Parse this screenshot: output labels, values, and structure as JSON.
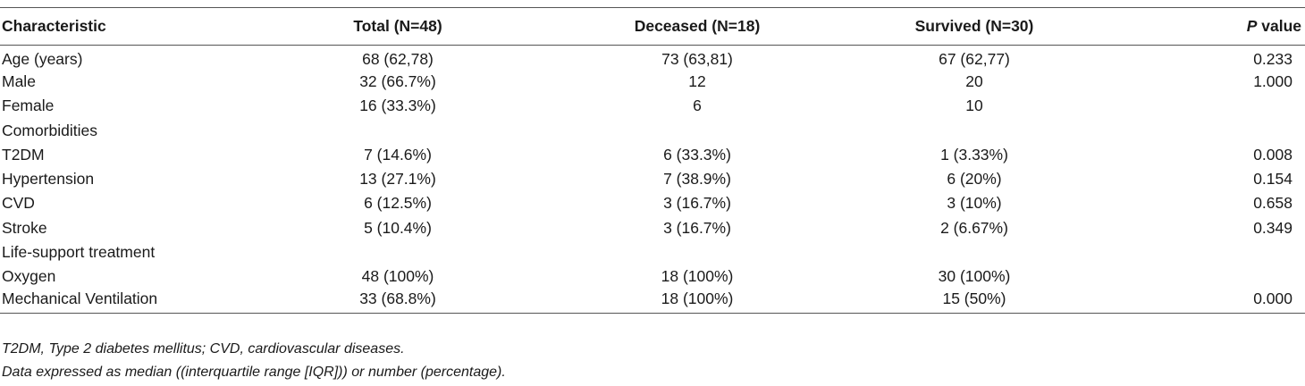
{
  "table": {
    "headers": {
      "characteristic": "Characteristic",
      "total": "Total (N=48)",
      "deceased": "Deceased (N=18)",
      "survived": "Survived (N=30)",
      "p_letter": "P",
      "p_rest": " value"
    },
    "rows": [
      {
        "label": "Age (years)",
        "total": "68 (62,78)",
        "deceased": "73 (63,81)",
        "survived": "67 (62,77)",
        "p": "0.233"
      },
      {
        "label": "Male",
        "total": "32 (66.7%)",
        "deceased": "12",
        "survived": "20",
        "p": "1.000"
      },
      {
        "label": "Female",
        "total": "16 (33.3%)",
        "deceased": "6",
        "survived": "10",
        "p": ""
      },
      {
        "label": "Comorbidities",
        "total": "",
        "deceased": "",
        "survived": "",
        "p": ""
      },
      {
        "label": "T2DM",
        "total": "7 (14.6%)",
        "deceased": "6 (33.3%)",
        "survived": "1 (3.33%)",
        "p": "0.008"
      },
      {
        "label": "Hypertension",
        "total": "13 (27.1%)",
        "deceased": "7 (38.9%)",
        "survived": "6 (20%)",
        "p": "0.154"
      },
      {
        "label": "CVD",
        "total": "6 (12.5%)",
        "deceased": "3 (16.7%)",
        "survived": "3 (10%)",
        "p": "0.658"
      },
      {
        "label": "Stroke",
        "total": "5 (10.4%)",
        "deceased": "3 (16.7%)",
        "survived": "2 (6.67%)",
        "p": "0.349"
      },
      {
        "label": "Life-support treatment",
        "total": "",
        "deceased": "",
        "survived": "",
        "p": ""
      },
      {
        "label": "Oxygen",
        "total": "48 (100%)",
        "deceased": "18 (100%)",
        "survived": "30 (100%)",
        "p": ""
      },
      {
        "label": "Mechanical Ventilation",
        "total": "33 (68.8%)",
        "deceased": "18 (100%)",
        "survived": "15 (50%)",
        "p": "0.000"
      }
    ]
  },
  "notes": {
    "abbreviations": "T2DM, Type 2 diabetes mellitus; CVD, cardiovascular diseases.",
    "expression": "Data expressed as median ((interquartile range [IQR])) or number (percentage)."
  }
}
